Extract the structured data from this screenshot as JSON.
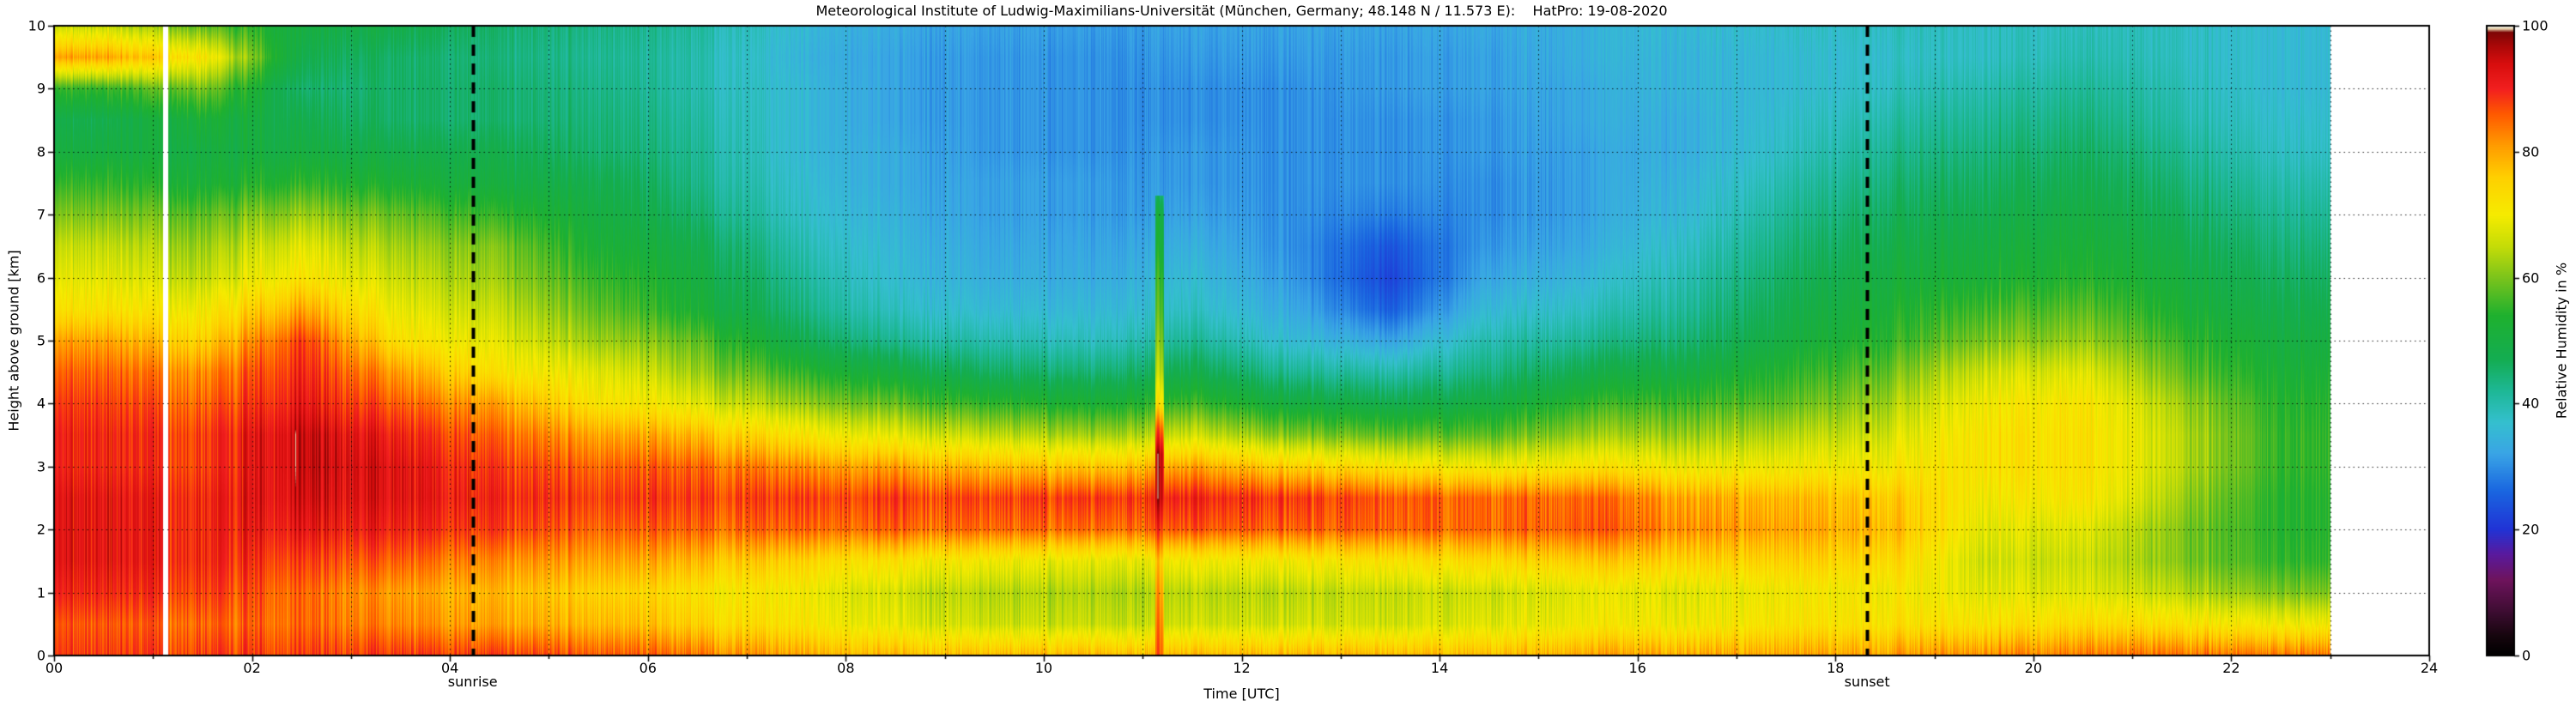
{
  "chart_data": {
    "type": "heatmap",
    "title": "Meteorological Institute of Ludwig-Maximilians-Universität (München, Germany; 48.148 N / 11.573 E):    HatPro: 19-08-2020",
    "background_color": "#ffffff",
    "grid_color": "#000000",
    "x": {
      "label": "Time [UTC]",
      "min": 0,
      "max": 24,
      "unit": "hours UTC",
      "tick_values": [
        0,
        2,
        4,
        6,
        8,
        10,
        12,
        14,
        16,
        18,
        20,
        22,
        24
      ],
      "tick_labels": [
        "00",
        "02",
        "04",
        "06",
        "08",
        "10",
        "12",
        "14",
        "16",
        "18",
        "20",
        "22",
        "24"
      ],
      "gridline_every_hours": 1
    },
    "y": {
      "label": "Height above ground [km]",
      "min": 0,
      "max": 10,
      "tick_values": [
        0,
        1,
        2,
        3,
        4,
        5,
        6,
        7,
        8,
        9,
        10
      ],
      "tick_labels": [
        "0",
        "1",
        "2",
        "3",
        "4",
        "5",
        "6",
        "7",
        "8",
        "9",
        "10"
      ],
      "gridline_every_km": 1
    },
    "colorbar": {
      "label": "Relative Humidity in %",
      "min": 0,
      "max": 100,
      "tick_values": [
        0,
        20,
        40,
        60,
        80,
        100
      ],
      "tick_labels": [
        "0",
        "20",
        "40",
        "60",
        "80",
        "100"
      ],
      "colormap_stops": [
        [
          0,
          "#000000"
        ],
        [
          3,
          "#16060e"
        ],
        [
          7,
          "#3f0d33"
        ],
        [
          12,
          "#6f145e"
        ],
        [
          16,
          "#5a1a9e"
        ],
        [
          20,
          "#2134d6"
        ],
        [
          26,
          "#1a66e0"
        ],
        [
          32,
          "#3aa5e6"
        ],
        [
          37,
          "#35c0cf"
        ],
        [
          42,
          "#1eb896"
        ],
        [
          47,
          "#14ad52"
        ],
        [
          54,
          "#1fb12f"
        ],
        [
          60,
          "#7cc41c"
        ],
        [
          65,
          "#c6dd08"
        ],
        [
          70,
          "#f6ec00"
        ],
        [
          76,
          "#ffd000"
        ],
        [
          81,
          "#ff9c00"
        ],
        [
          86,
          "#ff5a00"
        ],
        [
          90,
          "#f32020"
        ],
        [
          94,
          "#d80e0e"
        ],
        [
          97,
          "#a80808"
        ],
        [
          99,
          "#7e0606"
        ],
        [
          99.6,
          "#e3cfa8"
        ],
        [
          100,
          "#ffffff"
        ]
      ]
    },
    "data_end_hour": 23,
    "missing_data_gap": {
      "hour": 1.13,
      "width_hours": 0.05,
      "color": "#ffffff"
    },
    "convective_spike": {
      "hour": 11.17,
      "width_hours": 0.09,
      "top_km": 7.3,
      "profile_height_value_pairs": [
        [
          0,
          85
        ],
        [
          1,
          80
        ],
        [
          1.5,
          76
        ],
        [
          2,
          88
        ],
        [
          2.5,
          95
        ],
        [
          3.2,
          95
        ],
        [
          3.6,
          85
        ],
        [
          4,
          72
        ],
        [
          4.5,
          64
        ],
        [
          5,
          60
        ],
        [
          5.5,
          57
        ],
        [
          6,
          55
        ],
        [
          6.5,
          52
        ],
        [
          7,
          50
        ],
        [
          7.3,
          45
        ]
      ]
    },
    "annotations": {
      "sunrise": {
        "label": "sunrise",
        "hour": 4.23,
        "line_style": "dashed",
        "line_color": "#000000"
      },
      "sunset": {
        "label": "sunset",
        "hour": 18.32,
        "line_style": "dashed",
        "line_color": "#000000"
      }
    },
    "grid": {
      "x_hour_centers": [
        0.5,
        1.5,
        2.5,
        3.5,
        4.5,
        5.5,
        6.5,
        7.5,
        8.5,
        9.5,
        10.5,
        11.5,
        12.5,
        13.5,
        14.5,
        15.5,
        16.5,
        17.5,
        18.5,
        19.5,
        20.5,
        21.5,
        22.5
      ],
      "height_levels_km": [
        0,
        0.5,
        1,
        1.5,
        2,
        2.5,
        3,
        3.5,
        4,
        4.5,
        5,
        5.5,
        6,
        6.5,
        7,
        7.5,
        8,
        8.5,
        9,
        9.5,
        10
      ],
      "humidity_percent_columns": [
        [
          88,
          86,
          90,
          92,
          92,
          92,
          90,
          90,
          88,
          85,
          80,
          72,
          68,
          65,
          60,
          55,
          50,
          48,
          55,
          80,
          65
        ],
        [
          88,
          85,
          88,
          90,
          90,
          90,
          88,
          88,
          85,
          82,
          75,
          70,
          65,
          62,
          58,
          52,
          50,
          52,
          60,
          72,
          58
        ],
        [
          88,
          85,
          85,
          88,
          92,
          94,
          95,
          95,
          92,
          90,
          88,
          80,
          72,
          68,
          62,
          55,
          50,
          48,
          45,
          48,
          50
        ],
        [
          88,
          82,
          80,
          85,
          90,
          92,
          92,
          90,
          85,
          80,
          72,
          68,
          65,
          62,
          58,
          52,
          48,
          45,
          45,
          45,
          48
        ],
        [
          88,
          80,
          78,
          82,
          88,
          90,
          88,
          85,
          80,
          72,
          68,
          65,
          62,
          60,
          55,
          50,
          48,
          45,
          45,
          44,
          45
        ],
        [
          86,
          78,
          75,
          80,
          85,
          88,
          85,
          80,
          72,
          68,
          62,
          58,
          55,
          52,
          50,
          48,
          45,
          44,
          43,
          42,
          43
        ],
        [
          84,
          75,
          72,
          78,
          85,
          88,
          85,
          78,
          68,
          62,
          58,
          52,
          50,
          48,
          45,
          43,
          42,
          41,
          40,
          40,
          41
        ],
        [
          80,
          72,
          70,
          75,
          85,
          88,
          82,
          72,
          62,
          55,
          48,
          44,
          42,
          40,
          38,
          37,
          36,
          36,
          36,
          35,
          36
        ],
        [
          78,
          68,
          66,
          72,
          85,
          88,
          80,
          68,
          58,
          50,
          42,
          38,
          36,
          35,
          34,
          33,
          33,
          32,
          32,
          32,
          33
        ],
        [
          78,
          66,
          64,
          70,
          85,
          88,
          78,
          65,
          55,
          46,
          40,
          36,
          34,
          33,
          32,
          32,
          31,
          31,
          31,
          31,
          32
        ],
        [
          78,
          65,
          63,
          68,
          84,
          88,
          76,
          62,
          52,
          44,
          38,
          35,
          33,
          32,
          31,
          31,
          30,
          30,
          30,
          30,
          31
        ],
        [
          78,
          66,
          64,
          70,
          86,
          90,
          80,
          66,
          56,
          48,
          42,
          38,
          36,
          34,
          32,
          31,
          31,
          30,
          30,
          31,
          32
        ],
        [
          78,
          66,
          64,
          70,
          85,
          88,
          75,
          60,
          50,
          42,
          36,
          33,
          31,
          30,
          30,
          30,
          30,
          30,
          30,
          31,
          32
        ],
        [
          78,
          66,
          65,
          72,
          85,
          86,
          72,
          58,
          48,
          40,
          32,
          25,
          22,
          24,
          28,
          30,
          30,
          30,
          31,
          31,
          32
        ],
        [
          78,
          68,
          66,
          74,
          85,
          85,
          70,
          58,
          50,
          44,
          40,
          36,
          33,
          31,
          30,
          30,
          31,
          31,
          32,
          32,
          33
        ],
        [
          80,
          70,
          68,
          76,
          86,
          85,
          72,
          62,
          55,
          48,
          42,
          38,
          35,
          33,
          32,
          32,
          32,
          33,
          33,
          34,
          34
        ],
        [
          80,
          70,
          68,
          75,
          82,
          80,
          70,
          62,
          56,
          50,
          45,
          42,
          40,
          38,
          36,
          35,
          34,
          34,
          35,
          35,
          36
        ],
        [
          80,
          72,
          70,
          75,
          80,
          78,
          70,
          64,
          58,
          54,
          50,
          48,
          46,
          44,
          42,
          40,
          38,
          37,
          36,
          36,
          37
        ],
        [
          80,
          72,
          70,
          74,
          78,
          76,
          70,
          66,
          62,
          58,
          54,
          52,
          50,
          48,
          46,
          44,
          42,
          40,
          38,
          37,
          38
        ],
        [
          82,
          72,
          68,
          66,
          68,
          70,
          72,
          72,
          70,
          66,
          60,
          56,
          52,
          50,
          48,
          46,
          44,
          42,
          40,
          38,
          38
        ],
        [
          84,
          74,
          68,
          66,
          68,
          72,
          73,
          73,
          72,
          68,
          62,
          58,
          54,
          52,
          50,
          48,
          46,
          44,
          42,
          40,
          39
        ],
        [
          84,
          72,
          64,
          60,
          60,
          62,
          64,
          64,
          62,
          58,
          55,
          52,
          50,
          48,
          46,
          44,
          42,
          40,
          39,
          38,
          38
        ],
        [
          84,
          70,
          60,
          55,
          54,
          54,
          55,
          55,
          54,
          52,
          50,
          48,
          46,
          44,
          42,
          40,
          38,
          37,
          36,
          36,
          36
        ]
      ]
    }
  }
}
